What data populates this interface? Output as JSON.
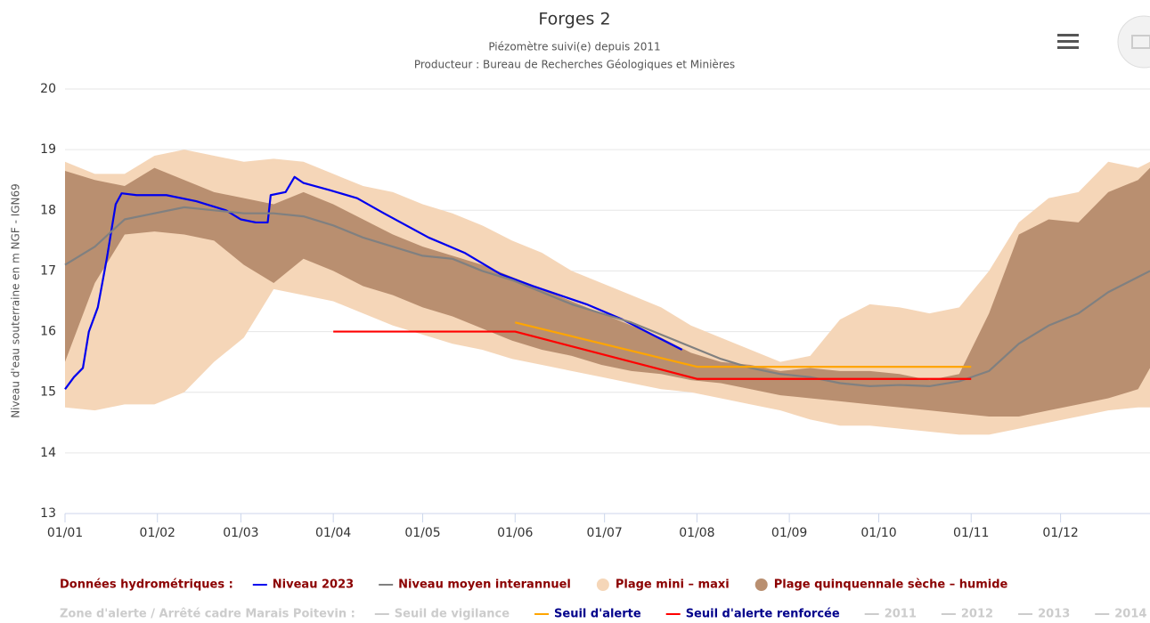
{
  "chart_data": {
    "type": "line",
    "title": "Forges 2",
    "subtitle": [
      "Piézomètre suivi(e) depuis 2011",
      "Producteur : Bureau de Recherches Géologiques et Minières"
    ],
    "y_axis_label": "Niveau d'eau souterraine en m NGF - IGN69",
    "xlim": [
      1,
      365
    ],
    "xticks": [
      {
        "value": 1,
        "label": "01/01"
      },
      {
        "value": 32,
        "label": "01/02"
      },
      {
        "value": 60,
        "label": "01/03"
      },
      {
        "value": 91,
        "label": "01/04"
      },
      {
        "value": 121,
        "label": "01/05"
      },
      {
        "value": 152,
        "label": "01/06"
      },
      {
        "value": 182,
        "label": "01/07"
      },
      {
        "value": 213,
        "label": "01/08"
      },
      {
        "value": 244,
        "label": "01/09"
      },
      {
        "value": 274,
        "label": "01/10"
      },
      {
        "value": 305,
        "label": "01/11"
      },
      {
        "value": 335,
        "label": "01/12"
      }
    ],
    "ylim": [
      13,
      20
    ],
    "yticks": [
      13,
      14,
      15,
      16,
      17,
      18,
      19,
      20
    ],
    "grid": true,
    "legend": "bottom",
    "series_groups": [
      {
        "title": "Données hydrométriques :",
        "color": "#8b0000",
        "series": [
          {
            "name": "Niveau 2023",
            "type": "line",
            "color": "#0000ee",
            "visible": true,
            "x": [
              1,
              4,
              7,
              9,
              12,
              15,
              18,
              20,
              25,
              35,
              45,
              55,
              60,
              65,
              69,
              70,
              75,
              78,
              81,
              90,
              99,
              108,
              123,
              135,
              147,
              158,
              167,
              176,
              188,
              200,
              208
            ],
            "values": [
              15.05,
              15.25,
              15.4,
              16.0,
              16.4,
              17.2,
              18.1,
              18.28,
              18.25,
              18.25,
              18.15,
              18.0,
              17.85,
              17.8,
              17.8,
              18.25,
              18.3,
              18.55,
              18.45,
              18.33,
              18.2,
              17.95,
              17.55,
              17.3,
              16.95,
              16.75,
              16.6,
              16.45,
              16.2,
              15.9,
              15.7
            ]
          },
          {
            "name": "Niveau moyen interannuel",
            "type": "line",
            "color": "#808080",
            "visible": true,
            "x": [
              1,
              11,
              21,
              31,
              41,
              51,
              61,
              71,
              81,
              91,
              101,
              111,
              121,
              131,
              141,
              151,
              161,
              171,
              181,
              191,
              201,
              211,
              221,
              231,
              241,
              251,
              261,
              271,
              281,
              291,
              301,
              311,
              321,
              331,
              341,
              351,
              361,
              365
            ],
            "values": [
              17.1,
              17.4,
              17.85,
              17.95,
              18.05,
              18.0,
              17.95,
              17.95,
              17.9,
              17.75,
              17.55,
              17.4,
              17.25,
              17.2,
              17.0,
              16.85,
              16.65,
              16.45,
              16.3,
              16.15,
              15.95,
              15.75,
              15.55,
              15.4,
              15.3,
              15.25,
              15.15,
              15.1,
              15.12,
              15.1,
              15.18,
              15.35,
              15.8,
              16.1,
              16.3,
              16.65,
              16.9,
              17.0
            ]
          },
          {
            "name": "Plage mini – maxi",
            "type": "arearange",
            "color": "#f5d6b8",
            "visible": true,
            "x": [
              1,
              11,
              21,
              31,
              41,
              51,
              61,
              71,
              81,
              91,
              101,
              111,
              121,
              131,
              141,
              151,
              161,
              171,
              181,
              191,
              201,
              211,
              221,
              231,
              241,
              251,
              261,
              271,
              281,
              291,
              301,
              311,
              321,
              331,
              341,
              351,
              361,
              365
            ],
            "low": [
              14.75,
              14.7,
              14.8,
              14.8,
              15.0,
              15.5,
              15.9,
              16.7,
              16.6,
              16.5,
              16.3,
              16.1,
              15.95,
              15.8,
              15.7,
              15.55,
              15.45,
              15.35,
              15.25,
              15.15,
              15.05,
              15.0,
              14.9,
              14.8,
              14.7,
              14.55,
              14.45,
              14.45,
              14.4,
              14.35,
              14.3,
              14.3,
              14.4,
              14.5,
              14.6,
              14.7,
              14.75,
              14.75
            ],
            "high": [
              18.8,
              18.6,
              18.6,
              18.9,
              19.0,
              18.9,
              18.8,
              18.85,
              18.8,
              18.6,
              18.4,
              18.3,
              18.1,
              17.95,
              17.75,
              17.5,
              17.3,
              17.0,
              16.8,
              16.6,
              16.4,
              16.1,
              15.9,
              15.7,
              15.5,
              15.6,
              16.2,
              16.45,
              16.4,
              16.3,
              16.4,
              17.0,
              17.8,
              18.2,
              18.3,
              18.8,
              18.7,
              18.8
            ]
          },
          {
            "name": "Plage quinquennale sèche – humide",
            "type": "arearange",
            "color": "#b98f70",
            "visible": true,
            "x": [
              1,
              11,
              21,
              31,
              41,
              51,
              61,
              71,
              81,
              91,
              101,
              111,
              121,
              131,
              141,
              151,
              161,
              171,
              181,
              191,
              201,
              211,
              221,
              231,
              241,
              251,
              261,
              271,
              281,
              291,
              301,
              311,
              321,
              331,
              341,
              351,
              361,
              365
            ],
            "low": [
              15.5,
              16.8,
              17.6,
              17.65,
              17.6,
              17.5,
              17.1,
              16.8,
              17.2,
              17.0,
              16.75,
              16.6,
              16.4,
              16.25,
              16.05,
              15.85,
              15.7,
              15.6,
              15.45,
              15.35,
              15.3,
              15.2,
              15.15,
              15.05,
              14.95,
              14.9,
              14.85,
              14.8,
              14.75,
              14.7,
              14.65,
              14.6,
              14.6,
              14.7,
              14.8,
              14.9,
              15.05,
              15.4
            ],
            "high": [
              18.65,
              18.5,
              18.4,
              18.7,
              18.5,
              18.3,
              18.2,
              18.1,
              18.3,
              18.1,
              17.85,
              17.6,
              17.4,
              17.25,
              17.1,
              16.9,
              16.7,
              16.5,
              16.3,
              16.1,
              15.9,
              15.65,
              15.5,
              15.45,
              15.35,
              15.4,
              15.35,
              15.35,
              15.3,
              15.2,
              15.3,
              16.3,
              17.6,
              17.85,
              17.8,
              18.3,
              18.5,
              18.7
            ]
          }
        ]
      },
      {
        "title": "Zone d'alerte / Arrêté cadre Marais Poitevin :",
        "color": "#cccccc",
        "series": [
          {
            "name": "Seuil de vigilance",
            "type": "line",
            "color": "#cccccc",
            "visible": false
          },
          {
            "name": "Seuil d'alerte",
            "type": "line",
            "color": "#ffa500",
            "visible": true,
            "x": [
              152,
              213,
              305
            ],
            "values": [
              16.15,
              15.42,
              15.42
            ]
          },
          {
            "name": "Seuil d'alerte renforcée",
            "type": "line",
            "color": "#ff0000",
            "visible": true,
            "x": [
              91,
              152,
              213,
              305
            ],
            "values": [
              16.0,
              16.0,
              15.22,
              15.22
            ]
          },
          {
            "name": "2011",
            "type": "line",
            "color": "#cccccc",
            "visible": false
          },
          {
            "name": "2012",
            "type": "line",
            "color": "#cccccc",
            "visible": false
          },
          {
            "name": "2013",
            "type": "line",
            "color": "#cccccc",
            "visible": false
          },
          {
            "name": "2014",
            "type": "line",
            "color": "#cccccc",
            "visible": false
          }
        ]
      }
    ]
  }
}
